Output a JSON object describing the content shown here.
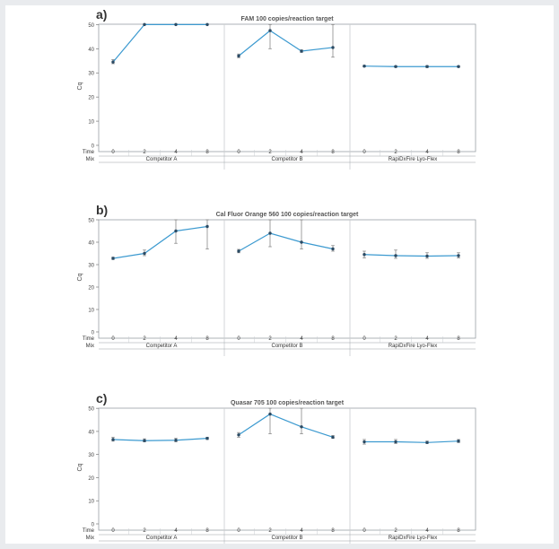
{
  "colors": {
    "line": "#3c9ad0",
    "marker": "#2b4a63",
    "errorbar": "#888888",
    "panel_border": "#9aa0a6",
    "divider": "#c8ccd0",
    "background": "#e9ebee"
  },
  "row_labels": {
    "time": "Time",
    "mix": "Mix"
  },
  "chart_data": [
    {
      "type": "line",
      "panel_label": "a)",
      "title": "FAM 100 copies/reaction target",
      "ylabel": "Cq",
      "ylim": [
        0,
        52
      ],
      "yticks": [
        0,
        10,
        20,
        30,
        40,
        50
      ],
      "time_ticks": [
        "0",
        "2",
        "4",
        "8"
      ],
      "groups": [
        {
          "name": "Competitor A",
          "points": [
            {
              "x": "0",
              "y": 34.5,
              "lo": 33.8,
              "hi": 35.5
            },
            {
              "x": "2",
              "y": 50,
              "lo": 50,
              "hi": 50
            },
            {
              "x": "4",
              "y": 50,
              "lo": 50,
              "hi": 50
            },
            {
              "x": "8",
              "y": 50,
              "lo": 50,
              "hi": 50
            }
          ]
        },
        {
          "name": "Competitor B",
          "points": [
            {
              "x": "0",
              "y": 37,
              "lo": 36.3,
              "hi": 37.8
            },
            {
              "x": "2",
              "y": 47.5,
              "lo": 40,
              "hi": 50
            },
            {
              "x": "4",
              "y": 39,
              "lo": 38.5,
              "hi": 39.5
            },
            {
              "x": "8",
              "y": 40.5,
              "lo": 36.5,
              "hi": 50
            }
          ]
        },
        {
          "name": "RapiDxFire Lyo-Flex",
          "points": [
            {
              "x": "0",
              "y": 32.8,
              "lo": 32.5,
              "hi": 33.1
            },
            {
              "x": "2",
              "y": 32.6,
              "lo": 32.3,
              "hi": 32.9
            },
            {
              "x": "4",
              "y": 32.6,
              "lo": 32.2,
              "hi": 33.0
            },
            {
              "x": "8",
              "y": 32.6,
              "lo": 32.3,
              "hi": 32.9
            }
          ]
        }
      ]
    },
    {
      "type": "line",
      "panel_label": "b)",
      "title": "Cal Fluor Orange 560 100 copies/reaction target",
      "ylabel": "Cq",
      "ylim": [
        0,
        52
      ],
      "yticks": [
        0,
        10,
        20,
        30,
        40,
        50
      ],
      "time_ticks": [
        "0",
        "2",
        "4",
        "8"
      ],
      "groups": [
        {
          "name": "Competitor A",
          "points": [
            {
              "x": "0",
              "y": 32.8,
              "lo": 32.3,
              "hi": 33.3
            },
            {
              "x": "2",
              "y": 35,
              "lo": 34,
              "hi": 36.5
            },
            {
              "x": "4",
              "y": 45,
              "lo": 39.5,
              "hi": 50
            },
            {
              "x": "8",
              "y": 47,
              "lo": 37,
              "hi": 50
            }
          ]
        },
        {
          "name": "Competitor B",
          "points": [
            {
              "x": "0",
              "y": 36,
              "lo": 35.3,
              "hi": 36.8
            },
            {
              "x": "2",
              "y": 44,
              "lo": 38,
              "hi": 50
            },
            {
              "x": "4",
              "y": 40,
              "lo": 37,
              "hi": 50
            },
            {
              "x": "8",
              "y": 37,
              "lo": 36,
              "hi": 38.5
            }
          ]
        },
        {
          "name": "RapiDxFire Lyo-Flex",
          "points": [
            {
              "x": "0",
              "y": 34.5,
              "lo": 33,
              "hi": 36
            },
            {
              "x": "2",
              "y": 34,
              "lo": 32.8,
              "hi": 36.5
            },
            {
              "x": "4",
              "y": 33.8,
              "lo": 32.8,
              "hi": 35.3
            },
            {
              "x": "8",
              "y": 34,
              "lo": 33,
              "hi": 35.3
            }
          ]
        }
      ]
    },
    {
      "type": "line",
      "panel_label": "c)",
      "title": "Quasar 705 100 copies/reaction target",
      "ylabel": "Cq",
      "ylim": [
        0,
        52
      ],
      "yticks": [
        0,
        10,
        20,
        30,
        40,
        50
      ],
      "time_ticks": [
        "0",
        "2",
        "4",
        "8"
      ],
      "groups": [
        {
          "name": "Competitor A",
          "points": [
            {
              "x": "0",
              "y": 36.5,
              "lo": 35.8,
              "hi": 37.5
            },
            {
              "x": "2",
              "y": 36,
              "lo": 35.5,
              "hi": 36.8
            },
            {
              "x": "4",
              "y": 36.2,
              "lo": 35.5,
              "hi": 37
            },
            {
              "x": "8",
              "y": 37,
              "lo": 36.5,
              "hi": 37.5
            }
          ]
        },
        {
          "name": "Competitor B",
          "points": [
            {
              "x": "0",
              "y": 38.5,
              "lo": 37.5,
              "hi": 39.5
            },
            {
              "x": "2",
              "y": 47.5,
              "lo": 39,
              "hi": 50
            },
            {
              "x": "4",
              "y": 42,
              "lo": 39,
              "hi": 50
            },
            {
              "x": "8",
              "y": 37.5,
              "lo": 37,
              "hi": 38.2
            }
          ]
        },
        {
          "name": "RapiDxFire Lyo-Flex",
          "points": [
            {
              "x": "0",
              "y": 35.5,
              "lo": 34.5,
              "hi": 36.5
            },
            {
              "x": "2",
              "y": 35.5,
              "lo": 34.8,
              "hi": 36.5
            },
            {
              "x": "4",
              "y": 35.2,
              "lo": 34.8,
              "hi": 35.8
            },
            {
              "x": "8",
              "y": 35.8,
              "lo": 35.2,
              "hi": 36.5
            }
          ]
        }
      ]
    }
  ]
}
